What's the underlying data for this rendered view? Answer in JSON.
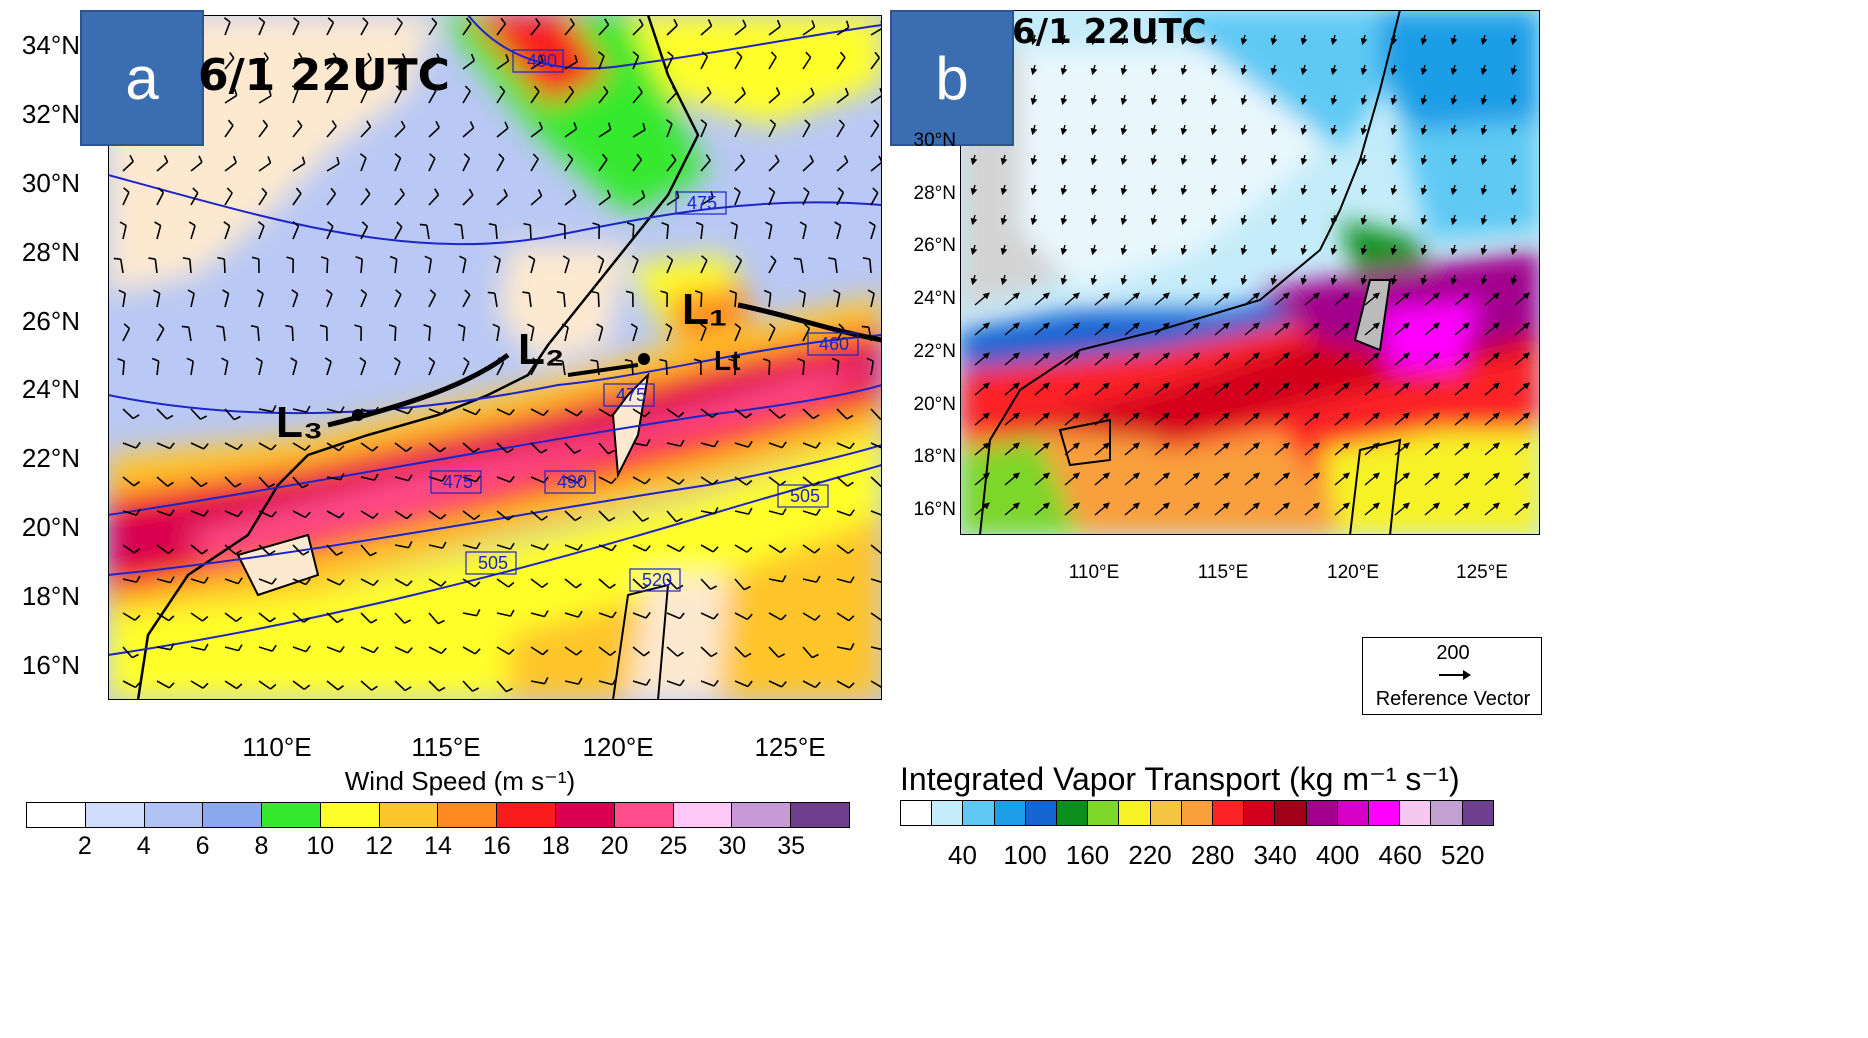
{
  "panel_a": {
    "label": "a",
    "time": "6/1 22UTC",
    "lat_labels": [
      "34°N",
      "32°N",
      "30°N",
      "28°N",
      "26°N",
      "24°N",
      "22°N",
      "20°N",
      "18°N",
      "16°N"
    ],
    "lon_labels": [
      "110°E",
      "115°E",
      "120°E",
      "125°E"
    ],
    "contour_labels": [
      "490",
      "475",
      "460",
      "475",
      "475",
      "490",
      "505",
      "505",
      "520"
    ],
    "annotations": [
      "L₁",
      "L₂",
      "L₃",
      "Lt"
    ],
    "colorbar": {
      "title": "Wind Speed (m s⁻¹)",
      "ticks": [
        "2",
        "4",
        "6",
        "8",
        "10",
        "12",
        "14",
        "16",
        "18",
        "20",
        "25",
        "30",
        "35"
      ],
      "colors": [
        "#ffffff",
        "#cfdcfb",
        "#b0c2f3",
        "#89a8f0",
        "#35e92e",
        "#ffff2b",
        "#ffc52c",
        "#ff8a24",
        "#fa1c1c",
        "#d9004f",
        "#ff4d8c",
        "#ffc9f7",
        "#c59ad6",
        "#6f3f8e"
      ]
    }
  },
  "panel_b": {
    "label": "b",
    "time": "6/1 22UTC",
    "lat_labels": [
      "30°N",
      "28°N",
      "26°N",
      "24°N",
      "22°N",
      "20°N",
      "18°N",
      "16°N"
    ],
    "lon_labels": [
      "110°E",
      "115°E",
      "120°E",
      "125°E"
    ],
    "reference_vector": {
      "value": "200",
      "label": "Reference Vector"
    },
    "colorbar": {
      "title": "Integrated Vapor Transport  (kg m⁻¹ s⁻¹)",
      "ticks": [
        "40",
        "100",
        "160",
        "220",
        "280",
        "340",
        "400",
        "460",
        "520"
      ],
      "colors": [
        "#ffffff",
        "#c5ecfa",
        "#5fc9f4",
        "#1e9ee6",
        "#1464d2",
        "#0b8f1c",
        "#7dd62a",
        "#f7f226",
        "#f5c542",
        "#f99f3c",
        "#fc2327",
        "#d3001e",
        "#a10019",
        "#a2008c",
        "#d400c5",
        "#ff00ff",
        "#f6c7f1",
        "#c4a0d2",
        "#6e3f8e"
      ]
    }
  }
}
